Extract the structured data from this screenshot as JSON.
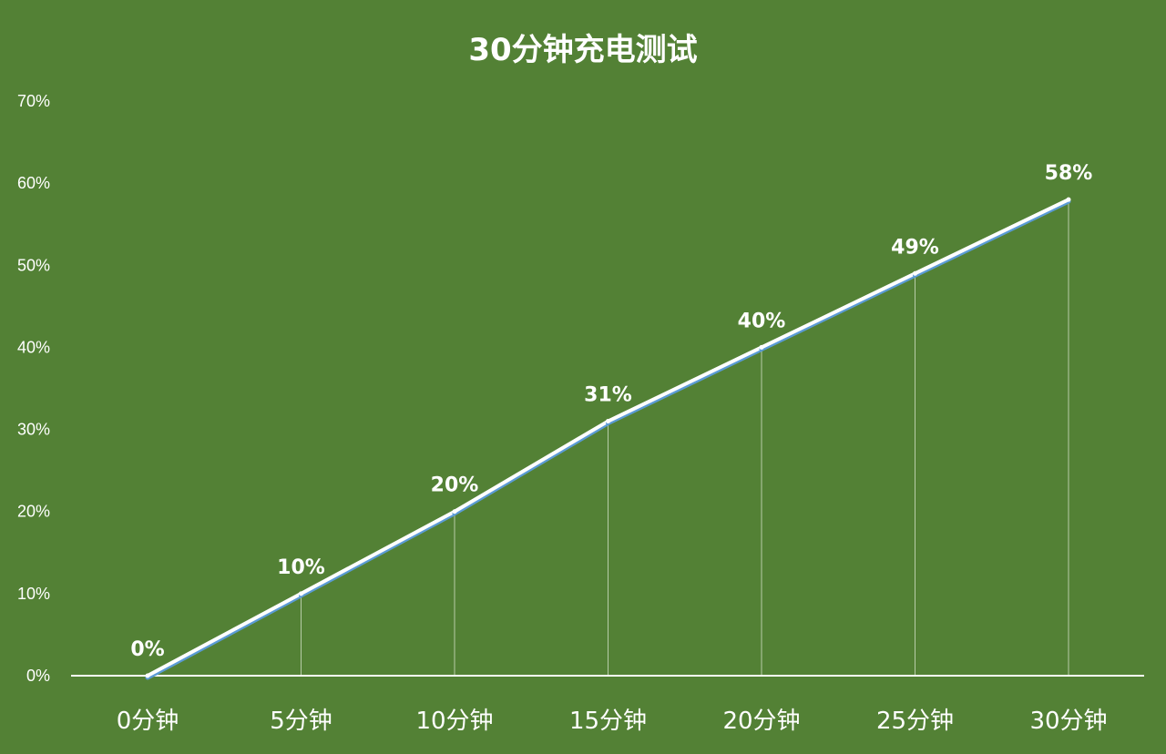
{
  "chart_data": {
    "type": "line",
    "title": "30分钟充电测试",
    "categories": [
      "0分钟",
      "5分钟",
      "10分钟",
      "15分钟",
      "20分钟",
      "25分钟",
      "30分钟"
    ],
    "series": [
      {
        "values": [
          0,
          10,
          20,
          31,
          40,
          49,
          58
        ]
      }
    ],
    "data_labels": [
      "0%",
      "10%",
      "20%",
      "31%",
      "40%",
      "49%",
      "58%"
    ],
    "y_ticks": [
      "0%",
      "10%",
      "20%",
      "30%",
      "40%",
      "50%",
      "60%",
      "70%"
    ],
    "ylim": [
      0,
      70
    ],
    "grid": false,
    "legend": "none",
    "drop_lines": true,
    "colors": {
      "background": "#538135",
      "line": "#ffffff",
      "line_shadow": "#5b9bd5",
      "text": "#ffffff",
      "axis": "#ffffff"
    }
  }
}
